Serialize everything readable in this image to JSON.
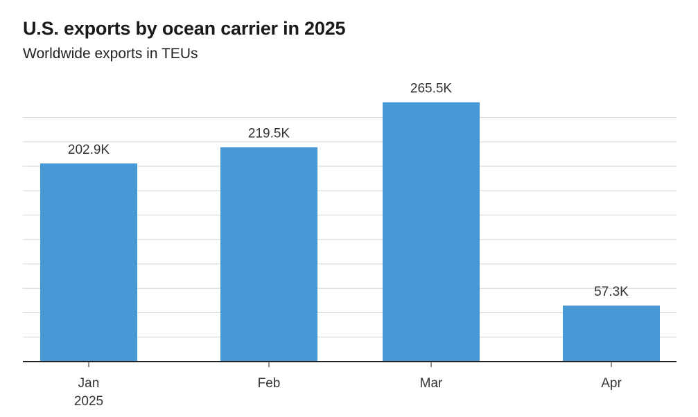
{
  "header": {
    "title": "U.S. exports by ocean carrier in 2025",
    "subtitle": "Worldwide exports in TEUs"
  },
  "chart_data": {
    "type": "bar",
    "title": "U.S. exports by ocean carrier in 2025",
    "subtitle": "Worldwide exports in TEUs",
    "xlabel": "",
    "ylabel": "",
    "categories": [
      "Jan",
      "Feb",
      "Mar",
      "Apr"
    ],
    "category_sublabels": [
      "2025",
      "",
      "",
      ""
    ],
    "values": [
      202.9,
      219.5,
      265.5,
      57.3
    ],
    "value_labels": [
      "202.9K",
      "219.5K",
      "265.5K",
      "57.3K"
    ],
    "unit": "K TEUs",
    "ylim": [
      0,
      250
    ],
    "gridlines": [
      25,
      50,
      75,
      100,
      125,
      150,
      175,
      200,
      225,
      250
    ],
    "grid": true,
    "y_tick_labels_visible": false,
    "legend": "none",
    "colors": {
      "bar": "#4898d5",
      "grid": "#d6d6d6",
      "axis": "#222222",
      "label": "#333333"
    }
  }
}
